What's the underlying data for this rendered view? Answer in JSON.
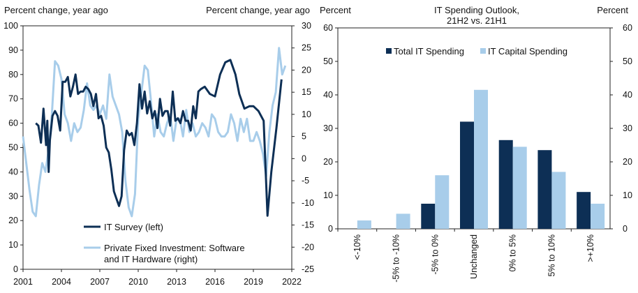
{
  "chart_data": [
    {
      "type": "line",
      "left_axis_label": "Percent change, year ago",
      "right_axis_label": "Percent change, year ago",
      "x_ticks": [
        "2001",
        "2004",
        "2007",
        "2010",
        "2013",
        "2016",
        "2019",
        "2022"
      ],
      "xlim": [
        2001,
        2022
      ],
      "left_ylim": [
        0,
        100
      ],
      "left_y_ticks": [
        "0",
        "10",
        "20",
        "30",
        "40",
        "50",
        "60",
        "70",
        "80",
        "90",
        "100"
      ],
      "right_ylim": [
        -25,
        30
      ],
      "right_y_ticks": [
        "-25",
        "-20",
        "-15",
        "-10",
        "-5",
        "0",
        "5",
        "10",
        "15",
        "20",
        "25",
        "30"
      ],
      "series": [
        {
          "name": "IT Survey (left)",
          "axis": "left",
          "color": "#0d2f55",
          "x": [
            2002.0,
            2002.2,
            2002.4,
            2002.6,
            2002.8,
            2002.9,
            2003.0,
            2003.1,
            2003.3,
            2003.5,
            2003.7,
            2003.9,
            2004.1,
            2004.3,
            2004.5,
            2004.7,
            2004.9,
            2005.1,
            2005.3,
            2005.5,
            2005.7,
            2005.9,
            2006.1,
            2006.3,
            2006.5,
            2006.7,
            2006.9,
            2007.1,
            2007.3,
            2007.5,
            2007.7,
            2007.9,
            2008.1,
            2008.3,
            2008.5,
            2008.7,
            2008.9,
            2009.1,
            2009.3,
            2009.5,
            2009.7,
            2009.9,
            2010.1,
            2010.3,
            2010.5,
            2010.7,
            2010.9,
            2011.1,
            2011.3,
            2011.5,
            2011.7,
            2011.9,
            2012.1,
            2012.3,
            2012.5,
            2012.7,
            2012.9,
            2013.1,
            2013.3,
            2013.5,
            2013.7,
            2013.9,
            2014.1,
            2014.3,
            2014.5,
            2014.7,
            2014.9,
            2015.2,
            2015.6,
            2016.0,
            2016.4,
            2016.8,
            2017.2,
            2017.6,
            2017.9,
            2018.3,
            2018.7,
            2019.0,
            2019.4,
            2019.8,
            2020.1,
            2020.4,
            2020.8,
            2021.2
          ],
          "y": [
            60,
            59,
            52,
            66,
            51,
            61,
            40,
            53,
            63,
            65,
            63,
            57,
            77,
            77,
            79,
            71,
            75,
            80,
            72,
            73,
            73,
            75,
            74,
            72,
            67,
            72,
            62,
            63,
            59,
            50,
            48,
            41,
            32,
            29,
            26,
            30,
            49,
            57,
            55,
            56,
            51,
            60,
            76,
            66,
            73,
            64,
            69,
            62,
            65,
            58,
            70,
            63,
            65,
            65,
            59,
            73,
            61,
            62,
            60,
            65,
            61,
            61,
            57,
            67,
            62,
            73,
            74,
            75,
            72,
            71,
            80,
            85,
            86,
            80,
            72,
            66,
            67,
            67,
            65,
            61,
            22,
            40,
            58,
            78
          ]
        },
        {
          "name": "Private Fixed Investment: Software and IT Hardware (right)",
          "axis": "right",
          "color": "#a8cdea",
          "x": [
            2001.0,
            2001.25,
            2001.5,
            2001.75,
            2002.0,
            2002.25,
            2002.5,
            2002.75,
            2003.0,
            2003.25,
            2003.5,
            2003.75,
            2004.0,
            2004.25,
            2004.5,
            2004.75,
            2005.0,
            2005.25,
            2005.5,
            2005.75,
            2006.0,
            2006.25,
            2006.5,
            2006.75,
            2007.0,
            2007.25,
            2007.5,
            2007.75,
            2008.0,
            2008.25,
            2008.5,
            2008.75,
            2009.0,
            2009.25,
            2009.5,
            2009.75,
            2010.0,
            2010.25,
            2010.5,
            2010.75,
            2011.0,
            2011.25,
            2011.5,
            2011.75,
            2012.0,
            2012.25,
            2012.5,
            2012.75,
            2013.0,
            2013.25,
            2013.5,
            2013.75,
            2014.0,
            2014.25,
            2014.5,
            2014.75,
            2015.0,
            2015.25,
            2015.5,
            2015.75,
            2016.0,
            2016.25,
            2016.5,
            2016.75,
            2017.0,
            2017.25,
            2017.5,
            2017.75,
            2018.0,
            2018.25,
            2018.5,
            2018.75,
            2019.0,
            2019.25,
            2019.5,
            2019.75,
            2020.0,
            2020.25,
            2020.5,
            2020.75,
            2021.0,
            2021.25,
            2021.5
          ],
          "y": [
            5,
            -1,
            -7,
            -12,
            -13,
            -6,
            -1,
            -3,
            2,
            10,
            22,
            21,
            18,
            10,
            8,
            4,
            8,
            6,
            7,
            11,
            17,
            12,
            11,
            12,
            10,
            12,
            9,
            19,
            14,
            12,
            10,
            6,
            -5,
            -11,
            -13,
            -8,
            9,
            15,
            21,
            20,
            13,
            5,
            10,
            6,
            5,
            8,
            10,
            4,
            9,
            9,
            5,
            11,
            6,
            8,
            5,
            6,
            8,
            7,
            5,
            10,
            9,
            6,
            5,
            5,
            6,
            10,
            8,
            4,
            9,
            6,
            9,
            4,
            4,
            6,
            4,
            1,
            -4,
            6,
            12,
            15,
            25,
            19,
            21
          ]
        }
      ]
    },
    {
      "type": "bar",
      "title": "IT Spending Outlook,",
      "subtitle": "21H2 vs. 21H1",
      "ylabel_left": "Percent",
      "ylabel_right": "Percent",
      "ylim": [
        0,
        60
      ],
      "y_ticks": [
        "0",
        "10",
        "20",
        "30",
        "40",
        "50",
        "60"
      ],
      "categories": [
        "<-10%",
        "-5% to -10%",
        "-5% to 0%",
        "Unchanged",
        "0% to 5%",
        "5% to 10%",
        ">+10%"
      ],
      "series": [
        {
          "name": "Total IT Spending",
          "color": "#0d2f55",
          "values": [
            0,
            0,
            7.5,
            32,
            26.5,
            23.5,
            11
          ]
        },
        {
          "name": "IT Capital Spending",
          "color": "#a8cdea",
          "values": [
            2.5,
            4.5,
            16,
            41.5,
            24.5,
            17,
            7.5
          ]
        }
      ]
    }
  ]
}
